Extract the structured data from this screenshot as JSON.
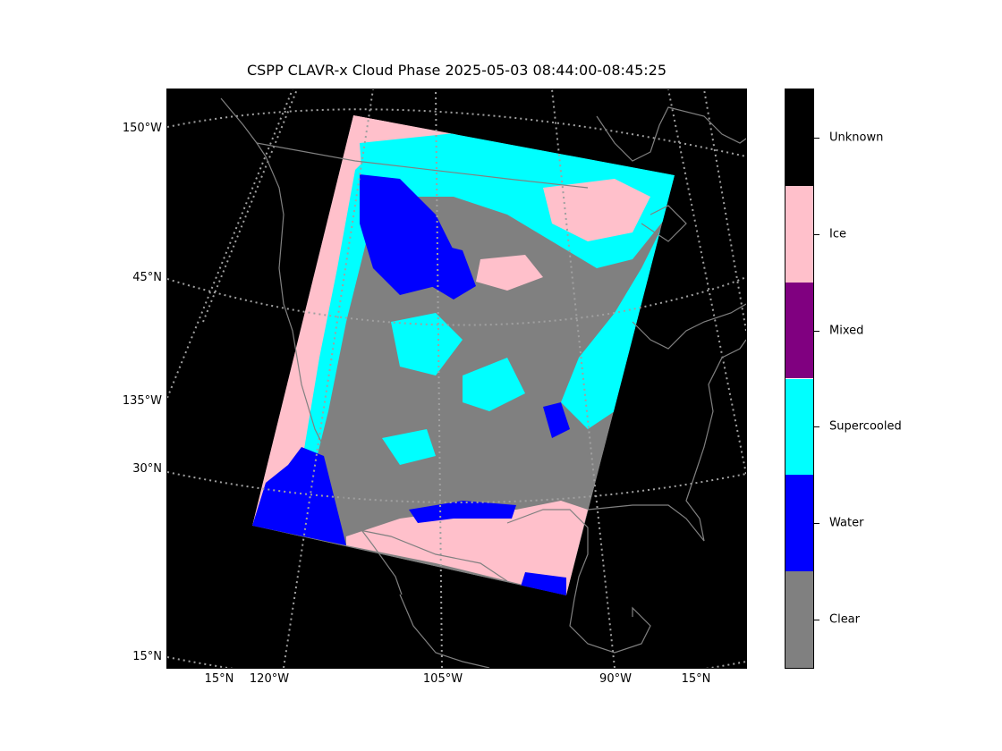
{
  "title": "CSPP CLAVR-x Cloud Phase 2025-05-03 08:44:00-08:45:25",
  "map": {
    "projection": "polar stereographic (north)",
    "background": "#000000",
    "coastline_color": "#808080",
    "graticule_color": "#a0a0a0",
    "graticule_style": "dotted",
    "lat_labels": [
      "150°W",
      "45°N",
      "135°W",
      "30°N",
      "15°N"
    ],
    "lon_labels": [
      "15°N",
      "120°W",
      "105°W",
      "90°W",
      "15°N"
    ]
  },
  "colorbar": {
    "classes": [
      {
        "label": "Unknown",
        "color": "#000000"
      },
      {
        "label": "Ice",
        "color": "#ffc0cb"
      },
      {
        "label": "Mixed",
        "color": "#800080"
      },
      {
        "label": "Supercooled",
        "color": "#00ffff"
      },
      {
        "label": "Water",
        "color": "#0000ff"
      },
      {
        "label": "Clear",
        "color": "#808080"
      }
    ]
  },
  "swath_colors": {
    "clear": "#808080",
    "water": "#0000ff",
    "supercooled": "#00ffff",
    "mixed": "#800080",
    "ice": "#ffc0cb"
  }
}
